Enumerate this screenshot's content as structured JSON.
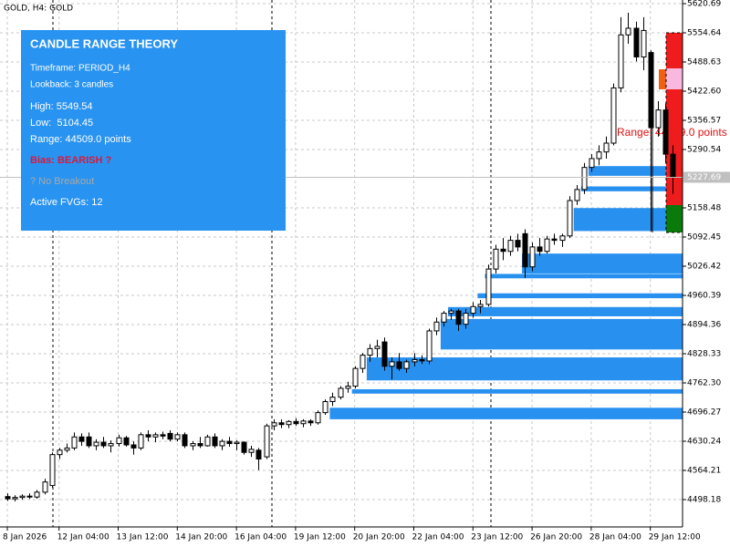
{
  "chart_data": {
    "type": "candlestick",
    "title": "GOLD, H4: GOLD",
    "categories": [
      "8 Jan 2026",
      null,
      null,
      null,
      null,
      null,
      null,
      "12 Jan 04:00",
      null,
      null,
      null,
      null,
      null,
      null,
      null,
      "13 Jan 12:00",
      null,
      null,
      null,
      null,
      null,
      null,
      null,
      "14 Jan 20:00",
      null,
      null,
      null,
      null,
      null,
      null,
      null,
      "16 Jan 04:00",
      null,
      null,
      null,
      null,
      null,
      null,
      null,
      "19 Jan 12:00",
      null,
      null,
      null,
      null,
      null,
      null,
      null,
      "20 Jan 20:00",
      null,
      null,
      null,
      null,
      null,
      null,
      null,
      "22 Jan 04:00",
      null,
      null,
      null,
      null,
      null,
      null,
      null,
      "23 Jan 12:00",
      null,
      null,
      null,
      null,
      null,
      null,
      null,
      "26 Jan 20:00",
      null,
      null,
      null,
      null,
      null,
      null,
      null,
      "28 Jan 04:00",
      null,
      null,
      null,
      null,
      null,
      null,
      null,
      "29 Jan 12:00",
      null,
      null,
      null
    ],
    "ohlc": [
      [
        4505,
        4512,
        4495,
        4500
      ],
      [
        4500,
        4508,
        4494,
        4503
      ],
      [
        4503,
        4510,
        4498,
        4506
      ],
      [
        4506,
        4512,
        4500,
        4504
      ],
      [
        4504,
        4520,
        4500,
        4515
      ],
      [
        4515,
        4545,
        4510,
        4538
      ],
      [
        4530,
        4605,
        4525,
        4600
      ],
      [
        4600,
        4615,
        4590,
        4610
      ],
      [
        4610,
        4625,
        4605,
        4615
      ],
      [
        4615,
        4650,
        4610,
        4640
      ],
      [
        4640,
        4648,
        4620,
        4630
      ],
      [
        4640,
        4650,
        4615,
        4620
      ],
      [
        4620,
        4635,
        4610,
        4628
      ],
      [
        4628,
        4640,
        4615,
        4620
      ],
      [
        4620,
        4632,
        4605,
        4625
      ],
      [
        4625,
        4645,
        4618,
        4638
      ],
      [
        4638,
        4642,
        4618,
        4622
      ],
      [
        4622,
        4630,
        4600,
        4615
      ],
      [
        4615,
        4650,
        4610,
        4645
      ],
      [
        4645,
        4655,
        4630,
        4640
      ],
      [
        4640,
        4650,
        4628,
        4645
      ],
      [
        4645,
        4652,
        4635,
        4642
      ],
      [
        4648,
        4655,
        4630,
        4635
      ],
      [
        4635,
        4650,
        4630,
        4645
      ],
      [
        4645,
        4650,
        4615,
        4620
      ],
      [
        4620,
        4630,
        4610,
        4625
      ],
      [
        4625,
        4640,
        4615,
        4620
      ],
      [
        4620,
        4645,
        4618,
        4640
      ],
      [
        4640,
        4648,
        4615,
        4620
      ],
      [
        4620,
        4635,
        4610,
        4630
      ],
      [
        4630,
        4640,
        4618,
        4625
      ],
      [
        4625,
        4632,
        4610,
        4628
      ],
      [
        4628,
        4630,
        4600,
        4605
      ],
      [
        4605,
        4620,
        4595,
        4612
      ],
      [
        4610,
        4615,
        4565,
        4590
      ],
      [
        4595,
        4670,
        4590,
        4665
      ],
      [
        4665,
        4680,
        4655,
        4672
      ],
      [
        4672,
        4680,
        4660,
        4668
      ],
      [
        4668,
        4678,
        4660,
        4675
      ],
      [
        4675,
        4682,
        4665,
        4670
      ],
      [
        4670,
        4680,
        4662,
        4676
      ],
      [
        4676,
        4680,
        4665,
        4672
      ],
      [
        4672,
        4700,
        4668,
        4695
      ],
      [
        4695,
        4725,
        4690,
        4720
      ],
      [
        4720,
        4740,
        4710,
        4730
      ],
      [
        4730,
        4755,
        4725,
        4750
      ],
      [
        4750,
        4765,
        4740,
        4755
      ],
      [
        4755,
        4800,
        4750,
        4795
      ],
      [
        4795,
        4830,
        4785,
        4825
      ],
      [
        4825,
        4850,
        4810,
        4840
      ],
      [
        4840,
        4860,
        4820,
        4845
      ],
      [
        4855,
        4865,
        4790,
        4800
      ],
      [
        4800,
        4820,
        4770,
        4810
      ],
      [
        4810,
        4830,
        4790,
        4795
      ],
      [
        4795,
        4815,
        4785,
        4810
      ],
      [
        4810,
        4830,
        4800,
        4815
      ],
      [
        4815,
        4825,
        4805,
        4812
      ],
      [
        4812,
        4885,
        4805,
        4880
      ],
      [
        4880,
        4910,
        4870,
        4900
      ],
      [
        4900,
        4925,
        4890,
        4920
      ],
      [
        4920,
        4930,
        4905,
        4925
      ],
      [
        4925,
        4930,
        4880,
        4895
      ],
      [
        4895,
        4930,
        4885,
        4920
      ],
      [
        4920,
        4945,
        4910,
        4935
      ],
      [
        4935,
        4950,
        4920,
        4940
      ],
      [
        4940,
        5030,
        4935,
        5020
      ],
      [
        5020,
        5075,
        5010,
        5065
      ],
      [
        5065,
        5090,
        5040,
        5060
      ],
      [
        5060,
        5095,
        5050,
        5085
      ],
      [
        5085,
        5100,
        5060,
        5070
      ],
      [
        5100,
        5110,
        5000,
        5025
      ],
      [
        5025,
        5080,
        5015,
        5070
      ],
      [
        5070,
        5090,
        5050,
        5060
      ],
      [
        5060,
        5095,
        5055,
        5088
      ],
      [
        5088,
        5100,
        5075,
        5085
      ],
      [
        5085,
        5100,
        5070,
        5095
      ],
      [
        5095,
        5185,
        5090,
        5175
      ],
      [
        5175,
        5210,
        5165,
        5200
      ],
      [
        5200,
        5260,
        5190,
        5250
      ],
      [
        5250,
        5280,
        5240,
        5270
      ],
      [
        5270,
        5300,
        5255,
        5285
      ],
      [
        5285,
        5320,
        5270,
        5305
      ],
      [
        5305,
        5440,
        5300,
        5430
      ],
      [
        5430,
        5590,
        5420,
        5550
      ],
      [
        5550,
        5600,
        5530,
        5565
      ],
      [
        5565,
        5580,
        5490,
        5500
      ],
      [
        5500,
        5590,
        5470,
        5560
      ],
      [
        5510,
        5515,
        5105,
        5340
      ],
      [
        5340,
        5400,
        5320,
        5380
      ],
      [
        5380,
        5395,
        5260,
        5280
      ],
      [
        5280,
        5300,
        5190,
        5227.69
      ]
    ],
    "up_color": "#ffffff",
    "down_color": "#000000",
    "outline_color": "#000000",
    "fvg_color": "#2891f0",
    "fvg_zones": [
      {
        "low": 5231,
        "high": 5253
      },
      {
        "low": 5196,
        "high": 5207
      },
      {
        "low": 5106,
        "high": 5158
      },
      {
        "low": 5010,
        "high": 5055
      },
      {
        "low": 4999,
        "high": 5009
      },
      {
        "low": 4954,
        "high": 4965
      },
      {
        "low": 4913,
        "high": 4934
      },
      {
        "low": 4838,
        "high": 4907
      },
      {
        "low": 4768,
        "high": 4820
      },
      {
        "low": 4738,
        "high": 4748
      },
      {
        "low": 4680,
        "high": 4706
      }
    ],
    "ylim": [
      4436.28,
      5628.94
    ],
    "yticks": [
      5620.69,
      5554.64,
      5488.63,
      {
        "value": 5422.6,
        "label": "5422.60"
      },
      5356.57,
      5290.54,
      5158.48,
      5092.45,
      5026.42,
      4960.39,
      4894.36,
      4828.33,
      {
        "value": 4762.3,
        "label": "4762.30"
      },
      4696.27,
      4630.24,
      4564.21,
      4498.18
    ],
    "current_price": 5227.69,
    "grid": true,
    "annotation": "Range: 44509.0 points",
    "panel": {
      "title": "CANDLE RANGE THEORY",
      "timeframe": "Timeframe: PERIOD_H4",
      "lookback": "Lookback: 3 candles",
      "high": "High: 5549.54",
      "low": "Low:  5104.45",
      "range": "Range: 44509.0 points",
      "bias": "Bias: BEARISH ?",
      "breakout": "? No Breakout",
      "fvgs": "Active FVGs: 12"
    }
  }
}
